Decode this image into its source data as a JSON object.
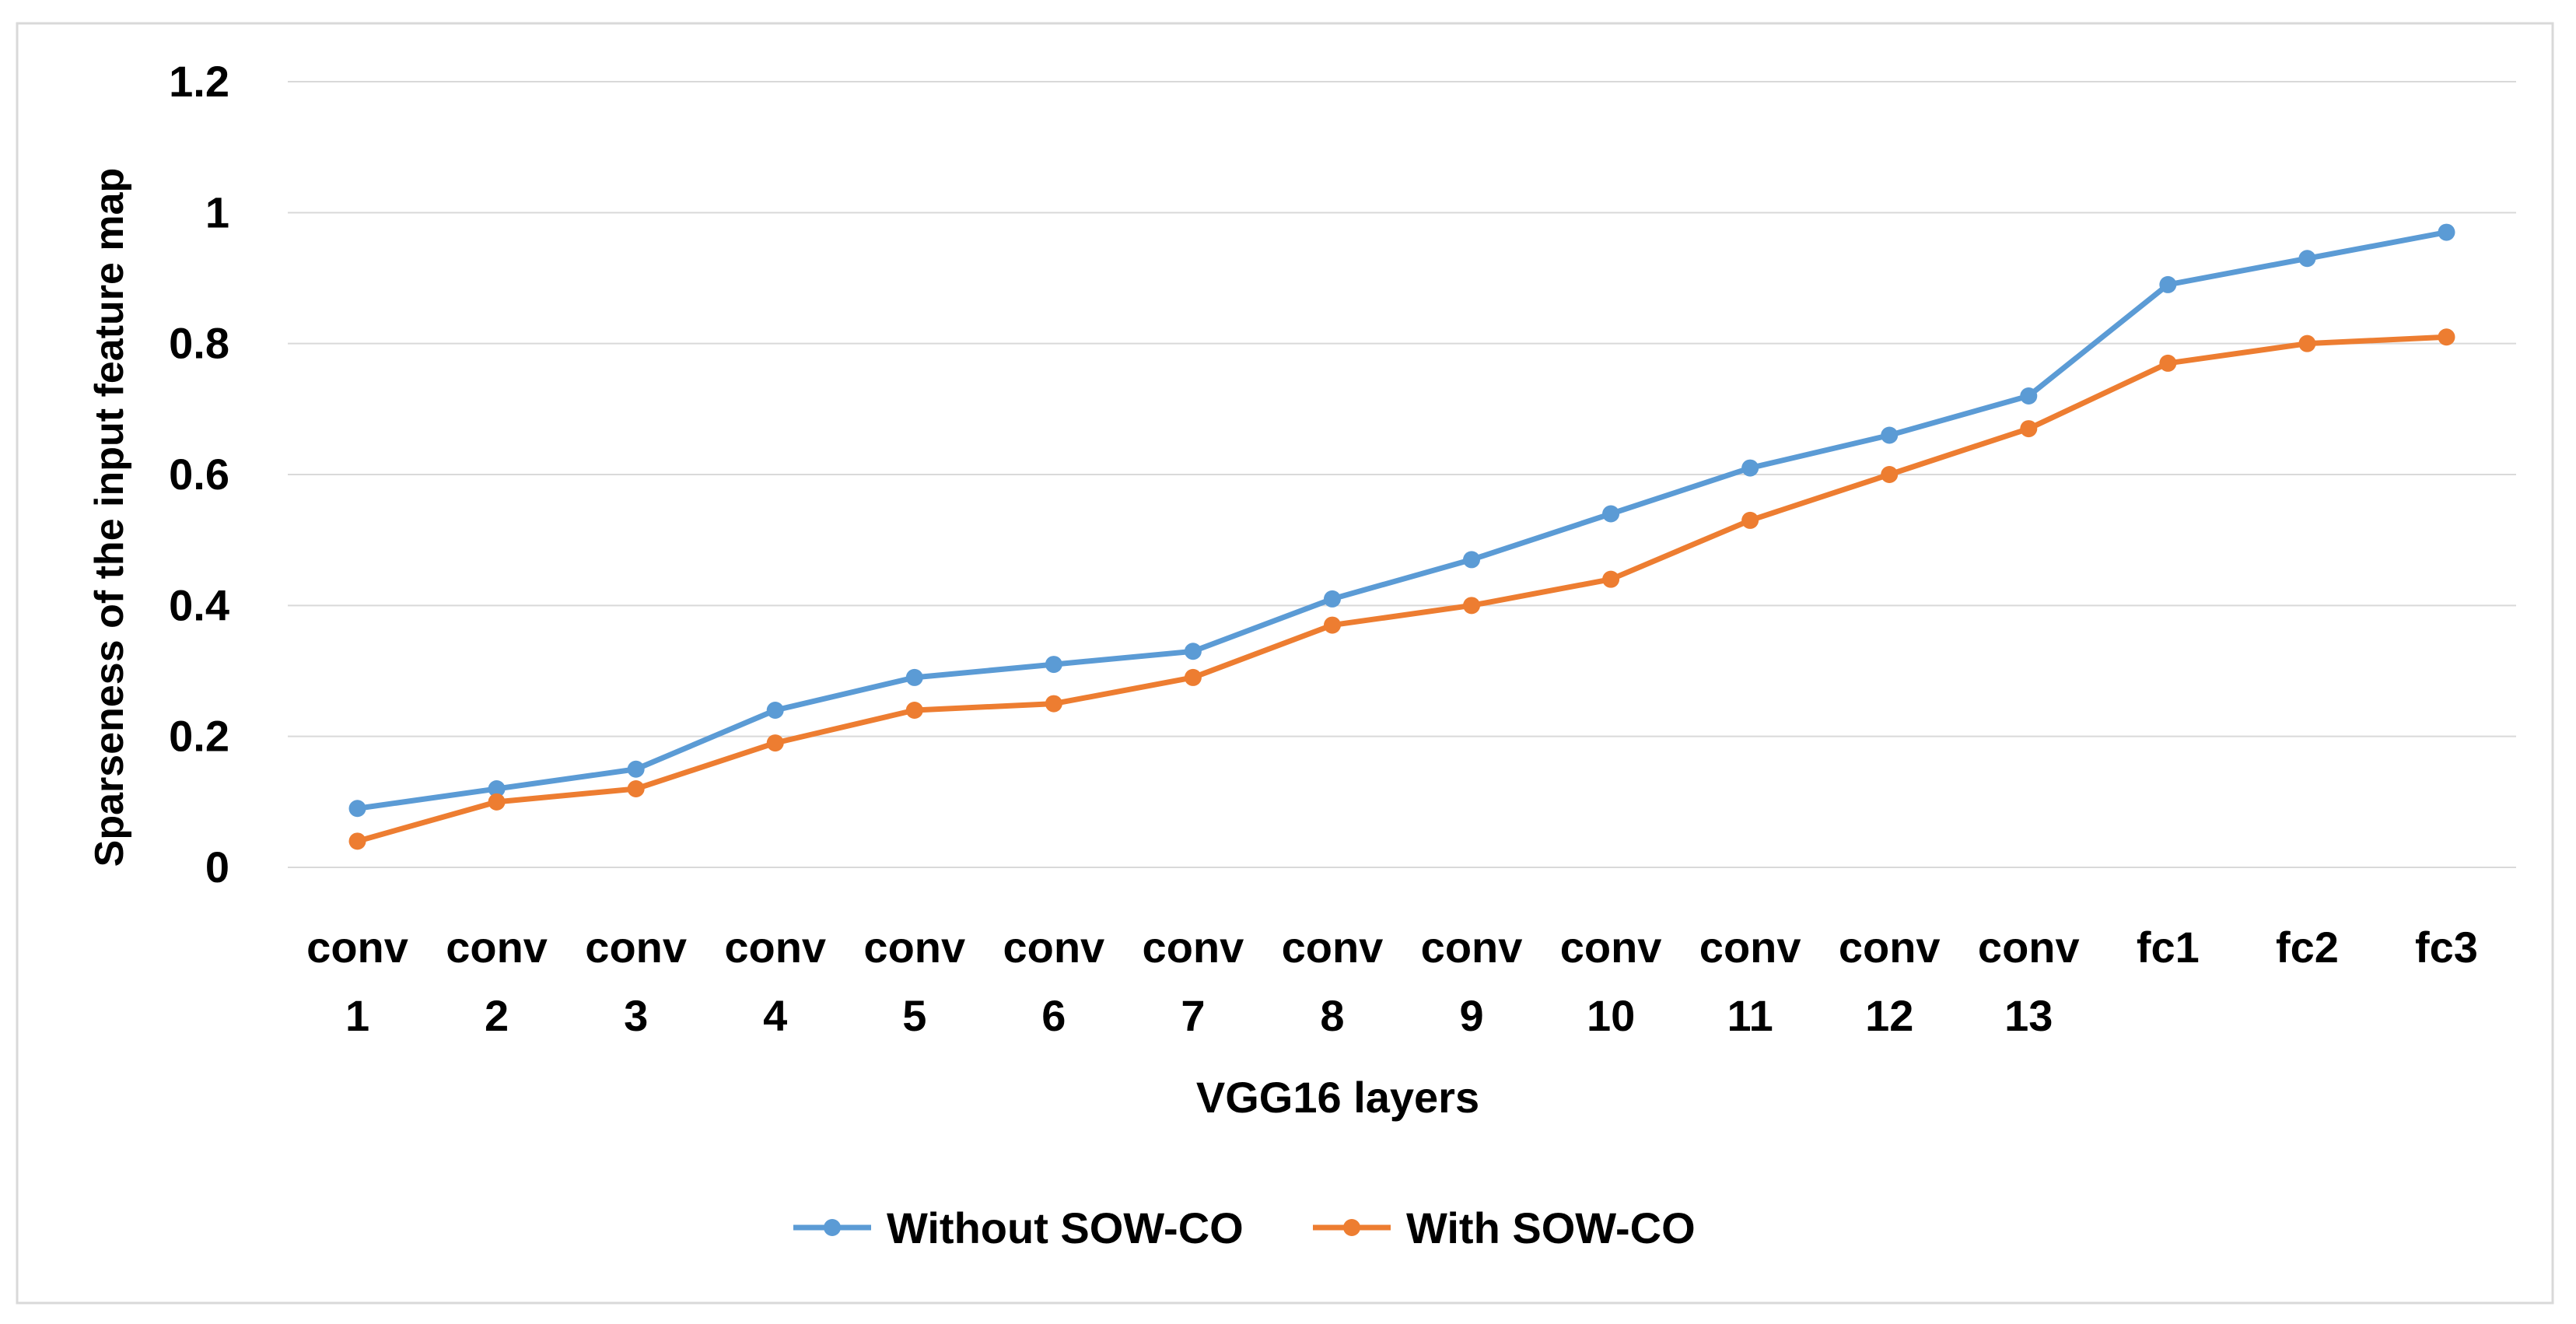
{
  "chart_data": {
    "type": "line",
    "title": "",
    "xlabel": "VGG16 layers",
    "ylabel": "Sparseness of the input feature map",
    "ylim": [
      0,
      1.2
    ],
    "yticks": [
      "0",
      "0.2",
      "0.4",
      "0.6",
      "0.8",
      "1",
      "1.2"
    ],
    "ytick_values": [
      0,
      0.2,
      0.4,
      0.6,
      0.8,
      1.0,
      1.2
    ],
    "categories": [
      [
        "conv",
        "1"
      ],
      [
        "conv",
        "2"
      ],
      [
        "conv",
        "3"
      ],
      [
        "conv",
        "4"
      ],
      [
        "conv",
        "5"
      ],
      [
        "conv",
        "6"
      ],
      [
        "conv",
        "7"
      ],
      [
        "conv",
        "8"
      ],
      [
        "conv",
        "9"
      ],
      [
        "conv",
        "10"
      ],
      [
        "conv",
        "11"
      ],
      [
        "conv",
        "12"
      ],
      [
        "conv",
        "13"
      ],
      [
        "fc1"
      ],
      [
        "fc2"
      ],
      [
        "fc3"
      ]
    ],
    "grid": true,
    "legend_position": "bottom",
    "series": [
      {
        "name": "Without SOW-CO",
        "color": "#5B9BD5",
        "values": [
          0.09,
          0.12,
          0.15,
          0.24,
          0.29,
          0.31,
          0.33,
          0.41,
          0.47,
          0.54,
          0.61,
          0.66,
          0.72,
          0.89,
          0.93,
          0.97
        ]
      },
      {
        "name": "With SOW-CO",
        "color": "#ED7D31",
        "values": [
          0.04,
          0.1,
          0.12,
          0.19,
          0.24,
          0.25,
          0.29,
          0.37,
          0.4,
          0.44,
          0.53,
          0.6,
          0.67,
          0.77,
          0.8,
          0.81
        ]
      }
    ]
  }
}
